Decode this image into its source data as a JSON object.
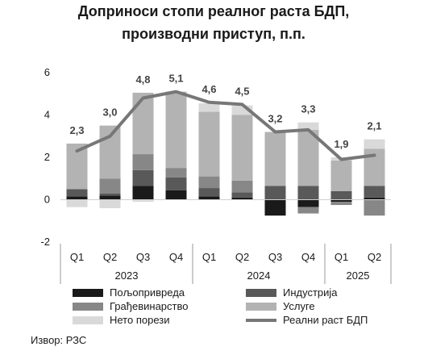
{
  "chart_data": {
    "type": "bar",
    "stacked": true,
    "title_lines": [
      "Доприноси стопи реалног раста БДП,",
      "производни приступ, п.п."
    ],
    "categories": [
      "Q1",
      "Q2",
      "Q3",
      "Q4",
      "Q1",
      "Q2",
      "Q3",
      "Q4",
      "Q1",
      "Q2"
    ],
    "years": [
      {
        "label": "2023",
        "from": 0,
        "to": 3
      },
      {
        "label": "2024",
        "from": 4,
        "to": 7
      },
      {
        "label": "2025",
        "from": 8,
        "to": 9
      }
    ],
    "ylim": [
      -2,
      6
    ],
    "yticks": [
      -2,
      0,
      2,
      4,
      6
    ],
    "series": [
      {
        "name": "Пољопривреда",
        "color": "#1a1a1a",
        "values": [
          0.15,
          0.2,
          0.65,
          0.45,
          0.15,
          0.1,
          -0.75,
          -0.35,
          -0.1,
          0.1
        ]
      },
      {
        "name": "Индустрија",
        "color": "#595959",
        "values": [
          0.35,
          0.1,
          0.75,
          0.6,
          0.4,
          0.25,
          0.65,
          0.65,
          0.4,
          0.55
        ]
      },
      {
        "name": "Грађевинарство",
        "color": "#878787",
        "values": [
          0.0,
          0.7,
          0.75,
          0.45,
          0.55,
          0.55,
          0.0,
          -0.3,
          -0.15,
          -0.75
        ]
      },
      {
        "name": "Услуге",
        "color": "#b3b3b3",
        "values": [
          2.15,
          2.5,
          2.9,
          3.6,
          3.05,
          3.1,
          2.55,
          2.65,
          1.45,
          1.75
        ]
      },
      {
        "name": "Нето порези",
        "color": "#d9d9d9",
        "values": [
          -0.35,
          -0.4,
          -0.1,
          0.0,
          0.4,
          0.45,
          0.0,
          0.35,
          0.15,
          0.45
        ]
      }
    ],
    "line": {
      "name": "Реални раст БДП",
      "color": "#777777",
      "values": [
        2.3,
        3.0,
        4.8,
        5.1,
        4.6,
        4.5,
        3.2,
        3.3,
        1.9,
        2.1
      ],
      "labels": [
        "2,3",
        "3,0",
        "4,8",
        "5,1",
        "4,6",
        "4,5",
        "3,2",
        "3,3",
        "1,9",
        "2,1"
      ]
    },
    "grid": false,
    "legend_position": "bottom"
  },
  "source": "Извор: РЗС"
}
